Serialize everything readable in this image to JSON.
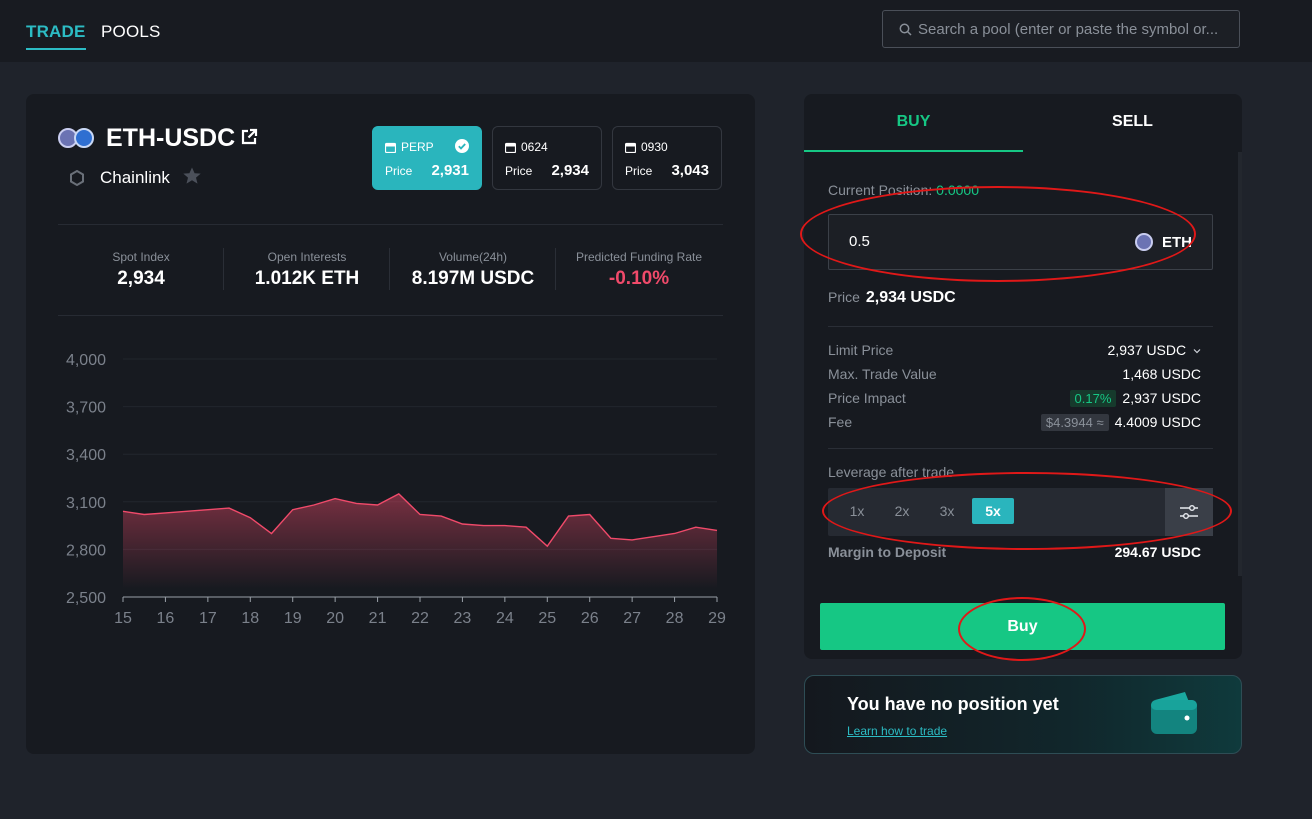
{
  "nav": {
    "tabs": [
      {
        "label": "TRADE"
      },
      {
        "label": "POOLS"
      }
    ]
  },
  "search": {
    "placeholder": "Search a pool (enter or paste the symbol or..."
  },
  "pair": {
    "title": "ETH-USDC",
    "oracle": "Chainlink",
    "markets": [
      {
        "name": "PERP",
        "price_label": "Price",
        "price": "2,931",
        "selected": true
      },
      {
        "name": "0624",
        "price_label": "Price",
        "price": "2,934",
        "selected": false
      },
      {
        "name": "0930",
        "price_label": "Price",
        "price": "3,043",
        "selected": false
      }
    ],
    "stats": [
      {
        "label": "Spot Index",
        "value": "2,934"
      },
      {
        "label": "Open Interests",
        "value": "1.012K ETH"
      },
      {
        "label": "Volume(24h)",
        "value": "8.197M USDC"
      },
      {
        "label": "Predicted Funding Rate",
        "value": "-0.10%"
      }
    ]
  },
  "chart_data": {
    "type": "area",
    "ylim": [
      2500,
      4000
    ],
    "yticks": [
      "4,000",
      "3,700",
      "3,400",
      "3,100",
      "2,800",
      "2,500"
    ],
    "ytick_values": [
      4000,
      3700,
      3400,
      3100,
      2800,
      2500
    ],
    "xticks": [
      "15",
      "16",
      "17",
      "18",
      "19",
      "20",
      "21",
      "22",
      "23",
      "24",
      "25",
      "26",
      "27",
      "28",
      "29"
    ],
    "x": [
      15,
      15.5,
      16,
      16.5,
      17,
      17.5,
      18,
      18.5,
      19,
      19.5,
      20,
      20.5,
      21,
      21.5,
      22,
      22.5,
      23,
      23.5,
      24,
      24.5,
      25,
      25.5,
      26,
      26.5,
      27,
      27.5,
      28,
      28.5,
      29
    ],
    "values": [
      3040,
      3020,
      3030,
      3040,
      3050,
      3060,
      3000,
      2900,
      3050,
      3080,
      3120,
      3090,
      3080,
      3150,
      3020,
      3010,
      2960,
      2950,
      2950,
      2940,
      2820,
      3010,
      3020,
      2870,
      2860,
      2880,
      2900,
      2940,
      2920
    ],
    "color": "#f04a6a",
    "grid": true
  },
  "trade": {
    "tabs": [
      {
        "label": "BUY"
      },
      {
        "label": "SELL"
      }
    ],
    "current_position_label": "Current Position:",
    "current_position_value": "0.0000",
    "amount": "0.5",
    "amount_unit": "ETH",
    "price_label": "Price",
    "price_value": "2,934 USDC",
    "rows": [
      {
        "label": "Limit Price",
        "value": "2,937 USDC"
      },
      {
        "label": "Max. Trade Value",
        "value": "1,468 USDC"
      },
      {
        "label": "Price Impact",
        "pill": "0.17%",
        "value": "2,937 USDC"
      },
      {
        "label": "Fee",
        "pill": "$4.3944 ≈",
        "value": "4.4009 USDC"
      }
    ],
    "leverage_label": "Leverage after trade",
    "leverage_options": [
      "1x",
      "2x",
      "3x",
      "5x"
    ],
    "leverage_selected": "5x",
    "margin_label": "Margin to Deposit",
    "margin_value": "294.67 USDC",
    "buy_button": "Buy"
  },
  "promo": {
    "title": "You have no position yet",
    "link": "Learn how to trade"
  },
  "colors": {
    "accent": "#2cbcc4",
    "buy": "#16c784",
    "negative": "#f04a6a",
    "annotation": "#e01818"
  }
}
